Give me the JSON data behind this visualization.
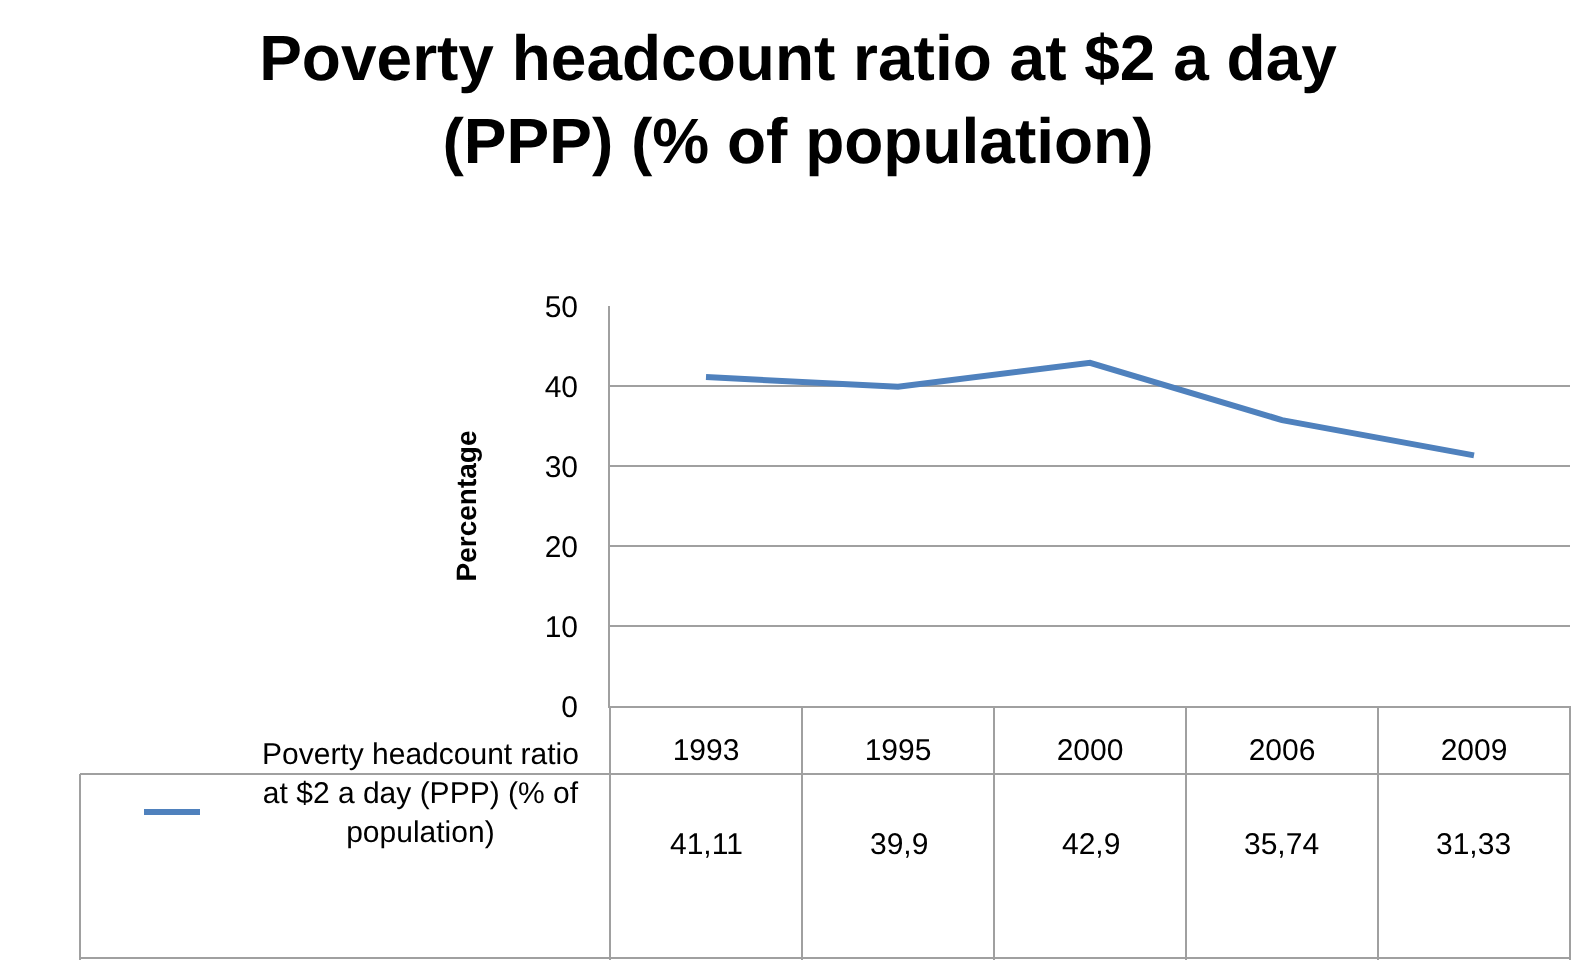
{
  "chart_data": {
    "type": "line",
    "title": "Poverty headcount ratio at $2 a day (PPP) (% of population)",
    "ylabel": "Percentage",
    "categories": [
      "1993",
      "1995",
      "2000",
      "2006",
      "2009"
    ],
    "series": [
      {
        "name": "Poverty headcount ratio at $2 a day (PPP) (% of population)",
        "color": "#4f81bd",
        "values": [
          41.11,
          39.9,
          42.9,
          35.74,
          31.33
        ],
        "value_labels": [
          "41,11",
          "39,9",
          "42,9",
          "35,74",
          "31,33"
        ]
      }
    ],
    "ylim": [
      0,
      50
    ],
    "yticks": [
      0,
      10,
      20,
      30,
      40,
      50
    ],
    "grid": "y",
    "legend": "bottom",
    "marker": "none",
    "line_style": "solid"
  }
}
